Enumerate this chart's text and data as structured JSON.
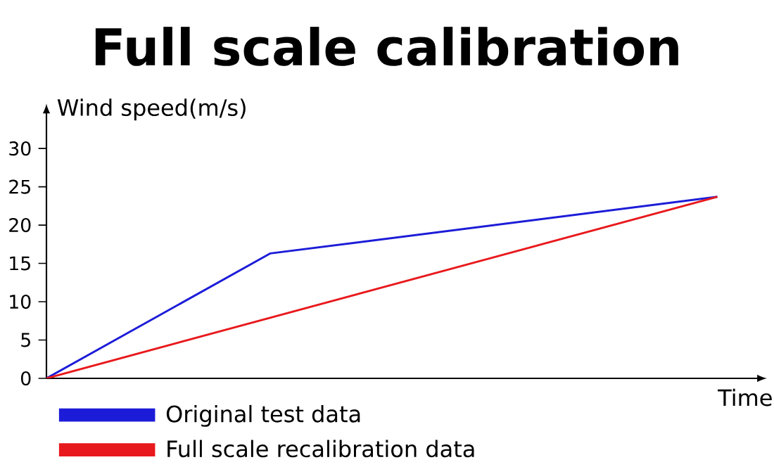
{
  "chart_data": {
    "type": "line",
    "title": "Full scale calibration",
    "xlabel": "Time",
    "ylabel": "Wind speed(m/s)",
    "categories": [
      null,
      null,
      null,
      null
    ],
    "series": [
      {
        "name": "Original test data",
        "color": "#1c1cd8",
        "values": [
          0,
          16.3,
          null,
          23.7
        ]
      },
      {
        "name": "Full scale recalibration data",
        "color": "#e8191c",
        "values": [
          0,
          7.9,
          15.8,
          23.7
        ]
      }
    ],
    "ylim": [
      0,
      35
    ],
    "yticks": [
      0,
      5,
      10,
      15,
      20,
      25,
      30
    ],
    "legend": "bottom",
    "tick_labels": "y"
  }
}
